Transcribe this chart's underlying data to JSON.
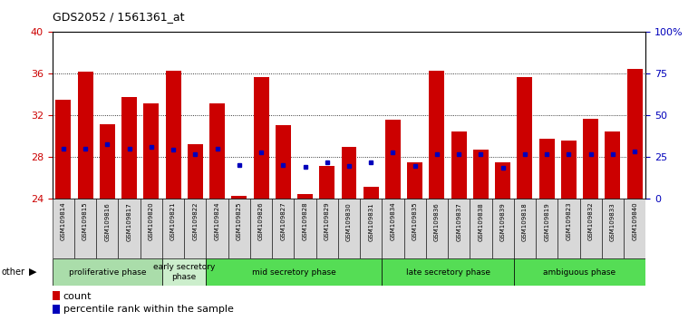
{
  "title": "GDS2052 / 1561361_at",
  "samples": [
    "GSM109814",
    "GSM109815",
    "GSM109816",
    "GSM109817",
    "GSM109820",
    "GSM109821",
    "GSM109822",
    "GSM109824",
    "GSM109825",
    "GSM109826",
    "GSM109827",
    "GSM109828",
    "GSM109829",
    "GSM109830",
    "GSM109831",
    "GSM109834",
    "GSM109835",
    "GSM109836",
    "GSM109837",
    "GSM109838",
    "GSM109839",
    "GSM109818",
    "GSM109819",
    "GSM109823",
    "GSM109832",
    "GSM109833",
    "GSM109840"
  ],
  "counts": [
    33.5,
    36.2,
    31.2,
    33.8,
    33.2,
    36.3,
    29.3,
    33.2,
    24.3,
    35.7,
    31.1,
    24.5,
    27.2,
    29.0,
    25.2,
    31.6,
    27.5,
    36.3,
    30.5,
    28.7,
    27.5,
    35.7,
    29.8,
    29.6,
    31.7,
    30.5,
    36.5
  ],
  "percentiles": [
    28.8,
    28.8,
    29.3,
    28.8,
    29.0,
    28.7,
    28.3,
    28.8,
    27.3,
    28.5,
    27.3,
    27.1,
    27.5,
    27.2,
    27.5,
    28.5,
    27.2,
    28.3,
    28.3,
    28.3,
    27.0,
    28.3,
    28.3,
    28.3,
    28.3,
    28.3,
    28.6
  ],
  "ylim_left": [
    24,
    40
  ],
  "ylim_right": [
    0,
    100
  ],
  "yticks_left": [
    24,
    28,
    32,
    36,
    40
  ],
  "ytick_labels_left": [
    "24",
    "28",
    "32",
    "36",
    "40"
  ],
  "yticks_right": [
    0,
    25,
    50,
    75,
    100
  ],
  "ytick_labels_right": [
    "0",
    "25",
    "50",
    "75",
    "100%"
  ],
  "bar_color": "#cc0000",
  "percentile_color": "#0000bb",
  "bar_bottom": 24,
  "phases": [
    {
      "label": "proliferative phase",
      "start": 0,
      "end": 5,
      "color": "#aaddaa"
    },
    {
      "label": "early secretory\nphase",
      "start": 5,
      "end": 7,
      "color": "#cceecc"
    },
    {
      "label": "mid secretory phase",
      "start": 7,
      "end": 15,
      "color": "#55dd55"
    },
    {
      "label": "late secretory phase",
      "start": 15,
      "end": 21,
      "color": "#55dd55"
    },
    {
      "label": "ambiguous phase",
      "start": 21,
      "end": 27,
      "color": "#55dd55"
    }
  ],
  "tick_label_color_left": "#cc0000",
  "tick_label_color_right": "#0000bb",
  "bg_color": "#ffffff",
  "plot_bg_color": "#ffffff"
}
